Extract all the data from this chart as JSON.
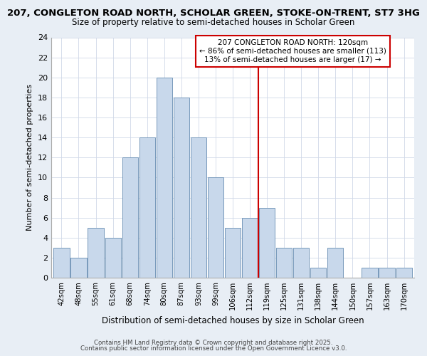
{
  "title_line1": "207, CONGLETON ROAD NORTH, SCHOLAR GREEN, STOKE-ON-TRENT, ST7 3HG",
  "title_line2": "Size of property relative to semi-detached houses in Scholar Green",
  "xlabel": "Distribution of semi-detached houses by size in Scholar Green",
  "ylabel": "Number of semi-detached properties",
  "bar_labels": [
    "42sqm",
    "48sqm",
    "55sqm",
    "61sqm",
    "68sqm",
    "74sqm",
    "80sqm",
    "87sqm",
    "93sqm",
    "99sqm",
    "106sqm",
    "112sqm",
    "119sqm",
    "125sqm",
    "131sqm",
    "138sqm",
    "144sqm",
    "150sqm",
    "157sqm",
    "163sqm",
    "170sqm"
  ],
  "bar_values": [
    3,
    2,
    5,
    4,
    12,
    14,
    20,
    18,
    14,
    10,
    5,
    6,
    7,
    3,
    3,
    1,
    3,
    0,
    1,
    1,
    1
  ],
  "bar_color": "#c8d8eb",
  "bar_edge_color": "#7799bb",
  "highlight_index": 12,
  "annotation_text": "207 CONGLETON ROAD NORTH: 120sqm\n← 86% of semi-detached houses are smaller (113)\n13% of semi-detached houses are larger (17) →",
  "annotation_box_color": "#ffffff",
  "annotation_box_edge": "#cc0000",
  "vline_color": "#cc0000",
  "ylim": [
    0,
    24
  ],
  "yticks": [
    0,
    2,
    4,
    6,
    8,
    10,
    12,
    14,
    16,
    18,
    20,
    22,
    24
  ],
  "footer_line1": "Contains HM Land Registry data © Crown copyright and database right 2025.",
  "footer_line2": "Contains public sector information licensed under the Open Government Licence v3.0.",
  "plot_bg_color": "#ffffff",
  "fig_bg_color": "#e8eef5",
  "grid_color": "#d0d8e8",
  "title_color": "#000000"
}
